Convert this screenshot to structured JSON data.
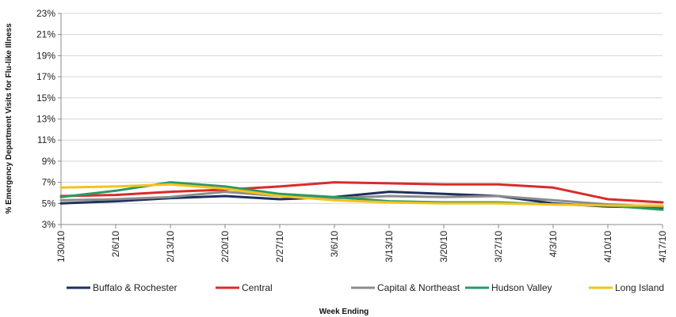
{
  "chart_data": {
    "type": "line",
    "xlabel": "Week Ending",
    "ylabel": "% Emergency Department Visits for Flu-like Illness",
    "categories": [
      "1/30/10",
      "2/6/10",
      "2/13/10",
      "2/20/10",
      "2/27/10",
      "3/6/10",
      "3/13/10",
      "3/20/10",
      "3/27/10",
      "4/3/10",
      "4/10/10",
      "4/17/10"
    ],
    "y_ticks": [
      "3%",
      "5%",
      "7%",
      "9%",
      "11%",
      "13%",
      "15%",
      "17%",
      "19%",
      "21%",
      "23%"
    ],
    "ylim": [
      3,
      23
    ],
    "grid": "horizontal",
    "legend_position": "bottom",
    "series": [
      {
        "name": "Buffalo & Rochester",
        "color": "#1f2f5e",
        "values": [
          5.0,
          5.2,
          5.5,
          5.7,
          5.4,
          5.6,
          6.1,
          5.9,
          5.7,
          5.0,
          4.7,
          4.6
        ]
      },
      {
        "name": "Central",
        "color": "#d92b2b",
        "values": [
          5.7,
          5.8,
          6.1,
          6.3,
          6.6,
          7.0,
          6.9,
          6.8,
          6.8,
          6.5,
          5.4,
          5.1
        ]
      },
      {
        "name": "Capital & Northeast",
        "color": "#8c8c8c",
        "values": [
          5.3,
          5.4,
          5.6,
          6.1,
          5.7,
          5.5,
          5.7,
          5.6,
          5.7,
          5.3,
          4.9,
          4.7
        ]
      },
      {
        "name": "Hudson Valley",
        "color": "#2a9a64",
        "values": [
          5.6,
          6.2,
          7.0,
          6.6,
          5.9,
          5.6,
          5.2,
          5.1,
          5.1,
          4.9,
          4.8,
          4.4
        ]
      },
      {
        "name": "Long Island",
        "color": "#f2c31b",
        "values": [
          6.5,
          6.6,
          6.8,
          6.4,
          5.7,
          5.3,
          5.1,
          5.0,
          5.0,
          4.9,
          4.8,
          4.8
        ]
      }
    ]
  }
}
